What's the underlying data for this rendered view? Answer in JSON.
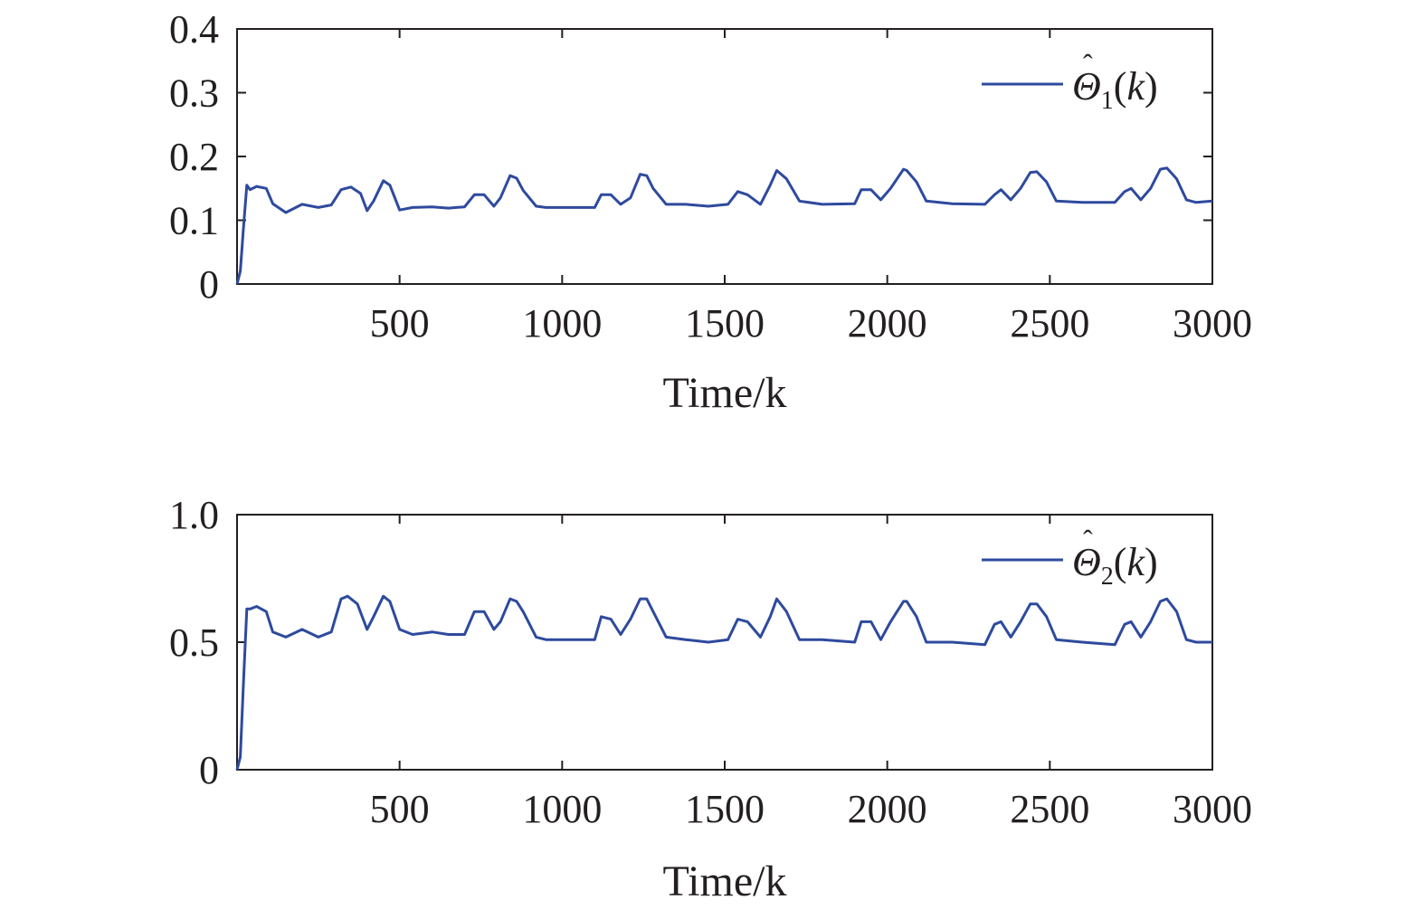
{
  "chart_data": [
    {
      "type": "line",
      "xlabel": "Time/k",
      "ylabel": "",
      "xlim": [
        0,
        3000
      ],
      "ylim": [
        0,
        0.4
      ],
      "xticks": [
        500,
        1000,
        1500,
        2000,
        2500,
        3000
      ],
      "xtick_labels": [
        "500",
        "1000",
        "1500",
        "2000",
        "2500",
        "3000"
      ],
      "yticks": [
        0,
        0.1,
        0.2,
        0.3,
        0.4
      ],
      "ytick_labels": [
        "0",
        "0.1",
        "0.2",
        "0.3",
        "0.4"
      ],
      "grid": false,
      "legend_position": "top-right",
      "color": "#2e4a9e",
      "series": [
        {
          "name": "Θ̂1(k)",
          "x": [
            0,
            10,
            20,
            30,
            40,
            60,
            90,
            110,
            150,
            200,
            250,
            290,
            320,
            350,
            380,
            400,
            420,
            450,
            470,
            500,
            540,
            600,
            650,
            700,
            730,
            760,
            790,
            810,
            840,
            860,
            880,
            920,
            950,
            1000,
            1100,
            1120,
            1150,
            1180,
            1210,
            1240,
            1260,
            1280,
            1320,
            1380,
            1450,
            1510,
            1540,
            1570,
            1610,
            1640,
            1660,
            1690,
            1730,
            1800,
            1900,
            1920,
            1950,
            1980,
            2010,
            2050,
            2060,
            2090,
            2120,
            2200,
            2300,
            2330,
            2350,
            2380,
            2410,
            2440,
            2460,
            2490,
            2520,
            2600,
            2700,
            2730,
            2750,
            2780,
            2810,
            2840,
            2860,
            2890,
            2920,
            2950,
            3000
          ],
          "y": [
            0,
            0.02,
            0.09,
            0.155,
            0.148,
            0.153,
            0.15,
            0.126,
            0.112,
            0.125,
            0.12,
            0.124,
            0.148,
            0.152,
            0.142,
            0.115,
            0.13,
            0.162,
            0.155,
            0.116,
            0.12,
            0.121,
            0.119,
            0.121,
            0.14,
            0.14,
            0.122,
            0.135,
            0.17,
            0.166,
            0.147,
            0.122,
            0.12,
            0.12,
            0.12,
            0.14,
            0.14,
            0.125,
            0.135,
            0.172,
            0.17,
            0.15,
            0.125,
            0.125,
            0.122,
            0.125,
            0.145,
            0.14,
            0.125,
            0.155,
            0.178,
            0.165,
            0.13,
            0.125,
            0.126,
            0.148,
            0.148,
            0.132,
            0.15,
            0.18,
            0.178,
            0.16,
            0.13,
            0.126,
            0.125,
            0.14,
            0.148,
            0.132,
            0.15,
            0.175,
            0.176,
            0.16,
            0.13,
            0.128,
            0.128,
            0.145,
            0.15,
            0.132,
            0.15,
            0.18,
            0.182,
            0.165,
            0.132,
            0.128,
            0.13
          ]
        }
      ]
    },
    {
      "type": "line",
      "xlabel": "Time/k",
      "ylabel": "",
      "xlim": [
        0,
        3000
      ],
      "ylim": [
        0,
        1.0
      ],
      "xticks": [
        500,
        1000,
        1500,
        2000,
        2500,
        3000
      ],
      "xtick_labels": [
        "500",
        "1000",
        "1500",
        "2000",
        "2500",
        "3000"
      ],
      "yticks": [
        0,
        0.5,
        1.0
      ],
      "ytick_labels": [
        "0",
        "0.5",
        "1.0"
      ],
      "grid": false,
      "legend_position": "top-right",
      "color": "#2e4a9e",
      "series": [
        {
          "name": "Θ̂2(k)",
          "x": [
            0,
            10,
            20,
            30,
            40,
            60,
            90,
            110,
            150,
            200,
            250,
            290,
            320,
            340,
            370,
            400,
            420,
            450,
            470,
            500,
            540,
            600,
            650,
            700,
            730,
            760,
            790,
            810,
            840,
            860,
            880,
            920,
            950,
            1000,
            1100,
            1120,
            1150,
            1180,
            1210,
            1240,
            1260,
            1280,
            1320,
            1380,
            1450,
            1510,
            1540,
            1570,
            1610,
            1640,
            1660,
            1690,
            1730,
            1800,
            1900,
            1920,
            1950,
            1980,
            2010,
            2050,
            2060,
            2090,
            2120,
            2200,
            2300,
            2330,
            2350,
            2380,
            2410,
            2440,
            2460,
            2490,
            2520,
            2600,
            2700,
            2730,
            2750,
            2780,
            2810,
            2840,
            2860,
            2890,
            2920,
            2950,
            3000
          ],
          "y": [
            0,
            0.05,
            0.35,
            0.63,
            0.63,
            0.64,
            0.62,
            0.54,
            0.52,
            0.55,
            0.52,
            0.54,
            0.67,
            0.68,
            0.65,
            0.55,
            0.6,
            0.68,
            0.66,
            0.55,
            0.53,
            0.54,
            0.53,
            0.53,
            0.62,
            0.62,
            0.55,
            0.58,
            0.67,
            0.66,
            0.62,
            0.52,
            0.51,
            0.51,
            0.51,
            0.6,
            0.59,
            0.53,
            0.59,
            0.67,
            0.67,
            0.62,
            0.52,
            0.51,
            0.5,
            0.51,
            0.59,
            0.58,
            0.52,
            0.6,
            0.67,
            0.62,
            0.51,
            0.51,
            0.5,
            0.58,
            0.58,
            0.51,
            0.58,
            0.66,
            0.66,
            0.6,
            0.5,
            0.5,
            0.49,
            0.57,
            0.58,
            0.52,
            0.58,
            0.65,
            0.65,
            0.6,
            0.51,
            0.5,
            0.49,
            0.57,
            0.58,
            0.52,
            0.58,
            0.66,
            0.67,
            0.62,
            0.51,
            0.5,
            0.5
          ]
        }
      ]
    }
  ]
}
